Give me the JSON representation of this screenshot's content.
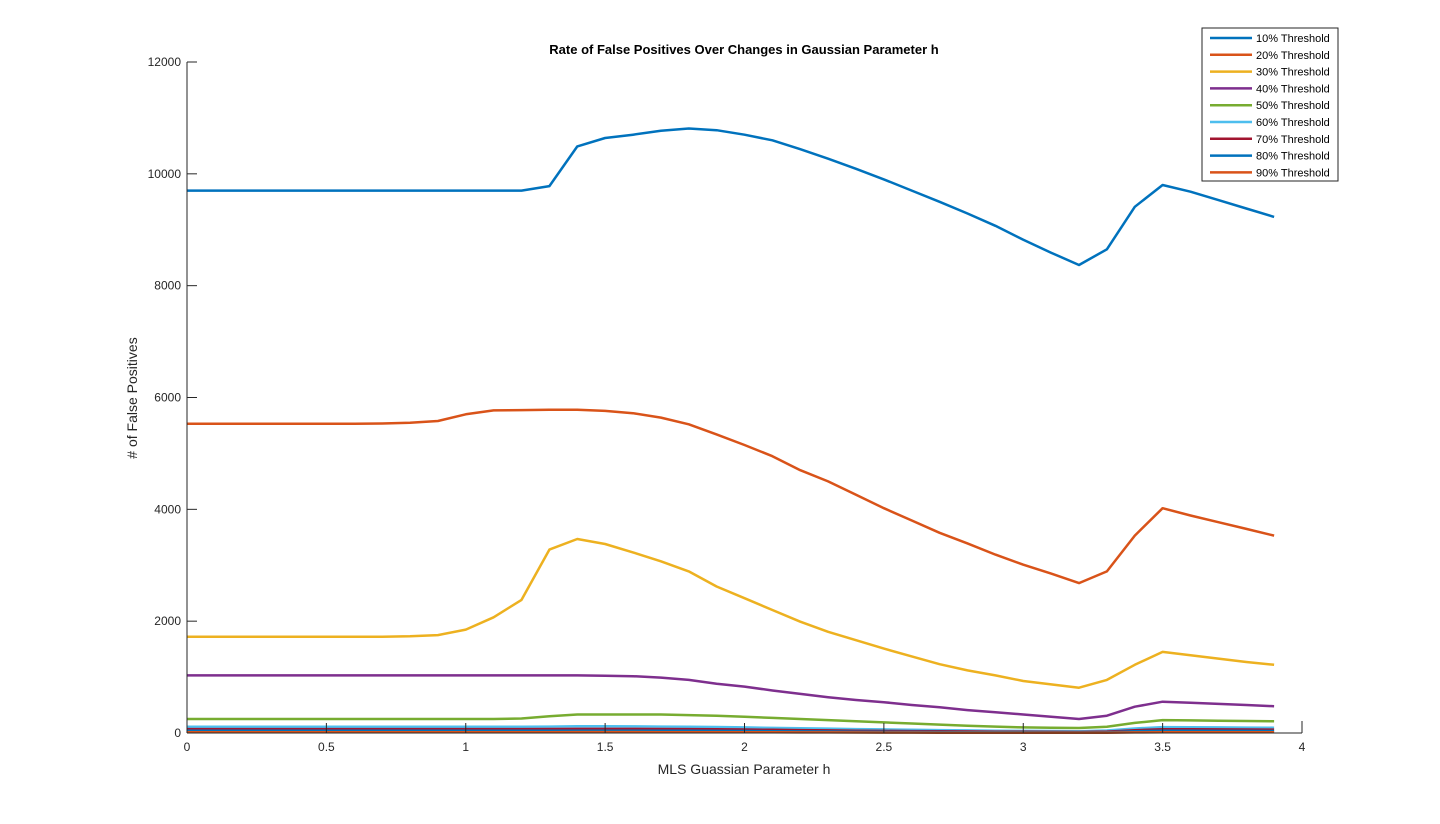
{
  "chart_data": {
    "type": "line",
    "title": "Rate of False Positives Over Changes in Gaussian Parameter h",
    "xlabel": "MLS Guassian Parameter h",
    "ylabel": "# of False Positives",
    "xlim": [
      0,
      4
    ],
    "ylim": [
      0,
      12000
    ],
    "xticks": [
      "0",
      "0.5",
      "1",
      "1.5",
      "2",
      "2.5",
      "3",
      "3.5",
      "4"
    ],
    "xtick_values": [
      0,
      0.5,
      1,
      1.5,
      2,
      2.5,
      3,
      3.5,
      4
    ],
    "yticks": [
      "0",
      "2000",
      "4000",
      "6000",
      "8000",
      "10000",
      "12000"
    ],
    "ytick_values": [
      0,
      2000,
      4000,
      6000,
      8000,
      10000,
      12000
    ],
    "grid": false,
    "legend_position": "top-right",
    "x": [
      0,
      0.1,
      0.2,
      0.3,
      0.4,
      0.5,
      0.6,
      0.7,
      0.8,
      0.9,
      1.0,
      1.1,
      1.2,
      1.3,
      1.4,
      1.5,
      1.6,
      1.7,
      1.8,
      1.9,
      2.0,
      2.1,
      2.2,
      2.3,
      2.4,
      2.5,
      2.6,
      2.7,
      2.8,
      2.9,
      3.0,
      3.1,
      3.2,
      3.3,
      3.4,
      3.5,
      3.6,
      3.7,
      3.8,
      3.9
    ],
    "series": [
      {
        "name": "10% Threshold",
        "color": "#0072BD",
        "values": [
          9700,
          9700,
          9700,
          9700,
          9700,
          9700,
          9700,
          9700,
          9700,
          9700,
          9700,
          9700,
          9700,
          9780,
          10490,
          10640,
          10700,
          10770,
          10810,
          10780,
          10700,
          10600,
          10440,
          10270,
          10090,
          9900,
          9700,
          9500,
          9290,
          9070,
          8820,
          8590,
          8370,
          8650,
          9410,
          9800,
          9680,
          9530,
          9380,
          9230
        ]
      },
      {
        "name": "20% Threshold",
        "color": "#D95319",
        "values": [
          5530,
          5530,
          5530,
          5530,
          5530,
          5530,
          5530,
          5535,
          5550,
          5580,
          5700,
          5770,
          5775,
          5780,
          5780,
          5760,
          5720,
          5640,
          5520,
          5340,
          5150,
          4950,
          4700,
          4500,
          4260,
          4020,
          3800,
          3580,
          3390,
          3190,
          3010,
          2850,
          2680,
          2890,
          3530,
          4020,
          3890,
          3770,
          3650,
          3530
        ]
      },
      {
        "name": "30% Threshold",
        "color": "#EDB120",
        "values": [
          1720,
          1720,
          1720,
          1720,
          1720,
          1720,
          1720,
          1720,
          1730,
          1750,
          1850,
          2070,
          2380,
          3280,
          3470,
          3380,
          3230,
          3070,
          2890,
          2620,
          2410,
          2200,
          1990,
          1810,
          1660,
          1510,
          1370,
          1230,
          1120,
          1030,
          930,
          870,
          810,
          950,
          1220,
          1450,
          1390,
          1330,
          1270,
          1220
        ]
      },
      {
        "name": "40% Threshold",
        "color": "#7E2F8E",
        "values": [
          1030,
          1030,
          1030,
          1030,
          1030,
          1030,
          1030,
          1030,
          1030,
          1030,
          1030,
          1030,
          1030,
          1030,
          1030,
          1025,
          1015,
          990,
          950,
          880,
          830,
          760,
          700,
          640,
          590,
          550,
          500,
          460,
          410,
          370,
          330,
          290,
          250,
          310,
          470,
          560,
          540,
          520,
          500,
          480
        ]
      },
      {
        "name": "50% Threshold",
        "color": "#77AC30",
        "values": [
          250,
          250,
          250,
          250,
          250,
          250,
          250,
          250,
          250,
          250,
          250,
          250,
          260,
          300,
          330,
          330,
          330,
          330,
          320,
          310,
          290,
          270,
          250,
          230,
          210,
          190,
          170,
          150,
          130,
          115,
          100,
          95,
          90,
          110,
          180,
          230,
          225,
          220,
          215,
          210
        ]
      },
      {
        "name": "60% Threshold",
        "color": "#4DBEEE",
        "values": [
          110,
          110,
          110,
          110,
          110,
          110,
          110,
          110,
          110,
          110,
          110,
          110,
          110,
          115,
          120,
          120,
          118,
          115,
          112,
          108,
          100,
          92,
          85,
          78,
          70,
          64,
          58,
          52,
          46,
          42,
          38,
          35,
          32,
          45,
          80,
          105,
          102,
          100,
          97,
          95
        ]
      },
      {
        "name": "70% Threshold",
        "color": "#A2142F",
        "values": [
          70,
          70,
          70,
          70,
          70,
          70,
          70,
          70,
          70,
          70,
          70,
          70,
          70,
          72,
          74,
          74,
          73,
          71,
          69,
          66,
          62,
          57,
          52,
          47,
          42,
          38,
          34,
          30,
          27,
          24,
          21,
          19,
          17,
          25,
          50,
          68,
          66,
          64,
          62,
          60
        ]
      },
      {
        "name": "80% Threshold",
        "color": "#0072BD",
        "values": [
          40,
          40,
          40,
          40,
          40,
          40,
          40,
          40,
          40,
          40,
          40,
          40,
          40,
          41,
          42,
          42,
          41,
          40,
          39,
          37,
          35,
          32,
          29,
          26,
          23,
          21,
          19,
          17,
          15,
          13,
          12,
          11,
          10,
          15,
          30,
          40,
          39,
          38,
          37,
          36
        ]
      },
      {
        "name": "90% Threshold",
        "color": "#D95319",
        "values": [
          15,
          15,
          15,
          15,
          15,
          15,
          15,
          15,
          15,
          15,
          15,
          15,
          15,
          15,
          16,
          16,
          16,
          15,
          15,
          14,
          13,
          12,
          11,
          10,
          9,
          8,
          7,
          6,
          5,
          5,
          4,
          4,
          4,
          6,
          11,
          15,
          15,
          14,
          14,
          13
        ]
      }
    ]
  }
}
